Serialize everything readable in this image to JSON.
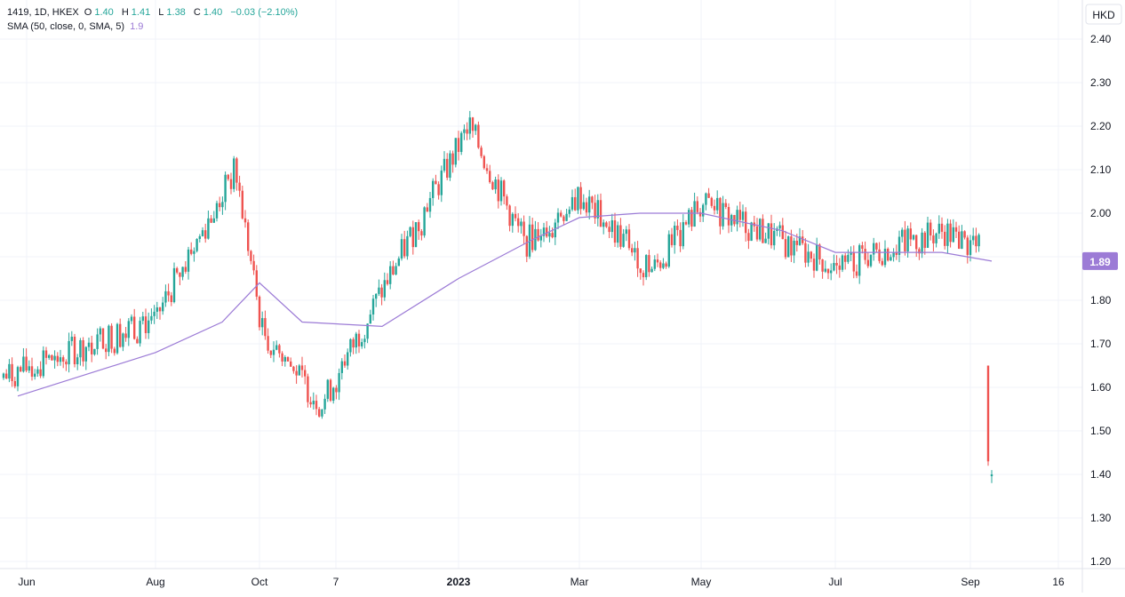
{
  "legend": {
    "symbol": "1419, 1D, HKEX",
    "o_label": "O",
    "o_value": "1.40",
    "h_label": "H",
    "h_value": "1.41",
    "l_label": "L",
    "l_value": "1.38",
    "c_label": "C",
    "c_value": "1.40",
    "change": "−0.03 (−2.10%)",
    "sma_label": "SMA (50, close, 0, SMA, 5)",
    "sma_value": "1.9"
  },
  "currency": "HKD",
  "price_badge": "1.89",
  "colors": {
    "up": "#26a69a",
    "down": "#ef5350",
    "sma": "#9c7bd6",
    "badge": "#9c7bd6",
    "grid": "#f0f3fa",
    "axis_text": "#131722"
  },
  "chart_data": {
    "type": "candlestick",
    "y_axis": {
      "ticks": [
        "2.40",
        "2.30",
        "2.20",
        "2.10",
        "2.00",
        "1.90",
        "1.80",
        "1.70",
        "1.60",
        "1.50",
        "1.40",
        "1.30",
        "1.20"
      ],
      "range": [
        1.18,
        2.44
      ]
    },
    "x_axis": {
      "tick_labels": [
        "Jun",
        "Aug",
        "Oct",
        "7",
        "2023",
        "Mar",
        "May",
        "Jul",
        "Sep",
        "16"
      ],
      "bold_labels": [
        "2023"
      ]
    },
    "key_points": [
      [
        "Jun",
        1.62
      ],
      [
        "Aug",
        1.76
      ],
      [
        "Sep-15",
        2.1
      ],
      [
        "Oct",
        1.73
      ],
      [
        "Nov-07",
        1.56
      ],
      [
        "Jan-03",
        2.2
      ],
      [
        "Feb-08",
        1.93
      ],
      [
        "Mar",
        2.04
      ],
      [
        "Apr-10",
        1.87
      ],
      [
        "May",
        2.02
      ],
      [
        "Jul",
        1.88
      ],
      [
        "Aug-25",
        1.96
      ],
      [
        "Sep-05",
        1.91
      ],
      [
        "Sep-06",
        1.43
      ],
      [
        "Sep-07",
        1.4
      ]
    ],
    "sma_points": [
      [
        "Jun",
        1.58
      ],
      [
        "Aug",
        1.68
      ],
      [
        "Sep",
        1.75
      ],
      [
        "Oct",
        1.84
      ],
      [
        "Nov",
        1.75
      ],
      [
        "Dec",
        1.74
      ],
      [
        "2023",
        1.85
      ],
      [
        "Feb",
        1.94
      ],
      [
        "Mar",
        1.99
      ],
      [
        "Apr",
        2.0
      ],
      [
        "May",
        2.0
      ],
      [
        "Jun",
        1.96
      ],
      [
        "Jul",
        1.91
      ],
      [
        "Aug",
        1.91
      ],
      [
        "Sep",
        1.91
      ],
      [
        "Sep-07",
        1.89
      ]
    ],
    "last": {
      "open": 1.4,
      "high": 1.41,
      "low": 1.38,
      "close": 1.4
    }
  }
}
